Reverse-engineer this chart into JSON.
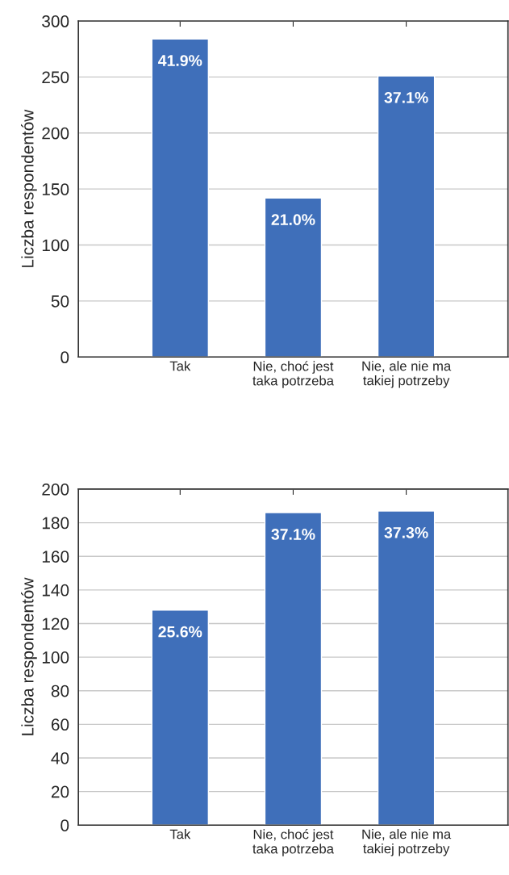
{
  "chart_data": [
    {
      "type": "bar",
      "ylabel": "Liczba respondentów",
      "categories": [
        "Tak",
        "Nie, choć jest\ntaka potrzeba",
        "Nie, ale nie ma\ntakiej potrzeby"
      ],
      "values": [
        284,
        142,
        251
      ],
      "annotations": [
        {
          "text": "41.9%",
          "x": "Tak",
          "y": 284
        },
        {
          "text": "21.0%",
          "x": "Nie, choć jest\ntaka potrzeba",
          "y": 142
        },
        {
          "text": "37.1%",
          "x": "Nie, ale nie ma\ntakiej potrzeby",
          "y": 251
        }
      ],
      "color": "#3f6fba",
      "ylim": [
        0,
        300
      ],
      "yticks": [
        0,
        50,
        100,
        150,
        200,
        250,
        300
      ],
      "grid": "y",
      "legend": false
    },
    {
      "type": "bar",
      "ylabel": "Liczba respondentów",
      "categories": [
        "Tak",
        "Nie, choć jest\ntaka potrzeba",
        "Nie, ale nie ma\ntakiej potrzeby"
      ],
      "values": [
        128,
        186,
        187
      ],
      "annotations": [
        {
          "text": "25.6%",
          "x": "Tak",
          "y": 128
        },
        {
          "text": "37.1%",
          "x": "Nie, choć jest\ntaka potrzeba",
          "y": 186
        },
        {
          "text": "37.3%",
          "x": "Nie, ale nie ma\ntakiej potrzeby",
          "y": 187
        }
      ],
      "color": "#3f6fba",
      "ylim": [
        0,
        200
      ],
      "yticks": [
        0,
        20,
        40,
        60,
        80,
        100,
        120,
        140,
        160,
        180,
        200
      ],
      "grid": "y",
      "legend": false
    }
  ]
}
